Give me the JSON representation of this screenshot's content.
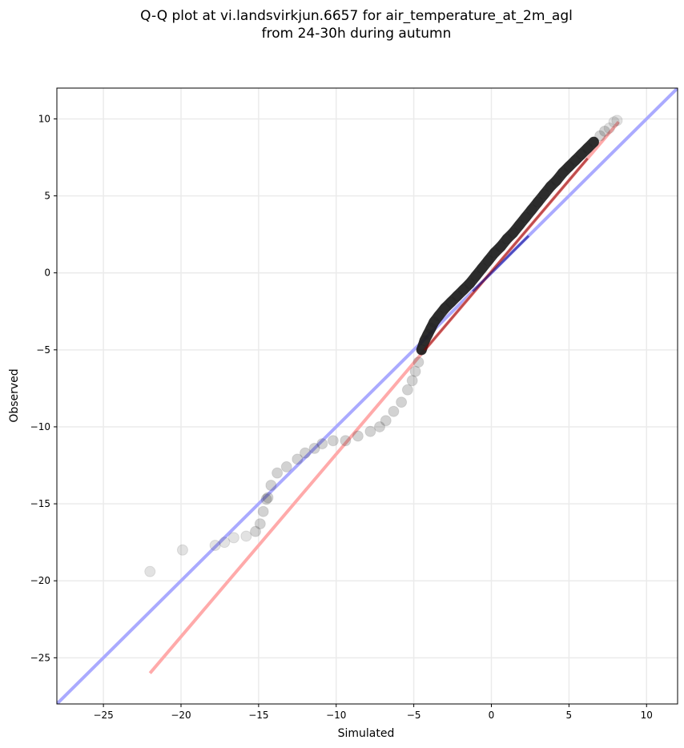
{
  "chart_data": {
    "type": "scatter",
    "title": "Q-Q plot at vi.landsvirkjun.6657 for air_temperature_at_2m_agl",
    "subtitle": "from 24-30h during autumn",
    "xlabel": "Simulated",
    "ylabel": "Observed",
    "xlim": [
      -28,
      12
    ],
    "ylim": [
      -28,
      12
    ],
    "x_ticks": [
      -25,
      -20,
      -15,
      -10,
      -5,
      0,
      5,
      10
    ],
    "y_ticks": [
      -25,
      -20,
      -15,
      -10,
      -5,
      0,
      5,
      10
    ],
    "x_tick_labels": [
      "−25",
      "−20",
      "−15",
      "−10",
      "−5",
      "0",
      "5",
      "10"
    ],
    "y_tick_labels": [
      "−25",
      "−20",
      "−15",
      "−10",
      "−5",
      "0",
      "5",
      "10"
    ],
    "grid": true,
    "colors": {
      "points": "#333333",
      "identity_line": "#aaaaff",
      "fit_line": "#ffaaaa",
      "inner_fit_red": "#8b0000",
      "inner_fit_blue": "#00008b"
    },
    "reference_lines": [
      {
        "kind": "identity",
        "x": [
          -28,
          12
        ],
        "y": [
          -28,
          12
        ]
      },
      {
        "kind": "fit",
        "x": [
          -22,
          8.2
        ],
        "y": [
          -26,
          9.8
        ]
      }
    ],
    "quantiles": {
      "x": [
        -22.0,
        -19.9,
        -17.8,
        -17.2,
        -16.6,
        -15.8,
        -15.2,
        -14.9,
        -14.7,
        -14.5,
        -14.4,
        -14.2,
        -13.8,
        -13.2,
        -12.5,
        -12.0,
        -11.4,
        -10.9,
        -10.2,
        -9.4,
        -8.6,
        -7.8,
        -7.2,
        -6.8,
        -6.3,
        -5.8,
        -5.4,
        -5.1,
        -4.9,
        -4.7,
        -4.5,
        -4.3,
        -4.1,
        -3.9,
        -3.7,
        -3.4,
        -3.0,
        -2.6,
        -2.2,
        -1.8,
        -1.4,
        -1.0,
        -0.6,
        -0.2,
        0.2,
        0.6,
        1.0,
        1.4,
        1.8,
        2.2,
        2.6,
        3.0,
        3.4,
        3.8,
        4.2,
        4.6,
        5.0,
        5.4,
        5.8,
        6.2,
        6.6,
        7.0,
        7.3,
        7.6,
        7.9,
        8.1
      ],
      "y": [
        -19.4,
        -18.0,
        -17.7,
        -17.5,
        -17.2,
        -17.1,
        -16.8,
        -16.3,
        -15.5,
        -14.7,
        -14.6,
        -13.8,
        -13.0,
        -12.6,
        -12.1,
        -11.7,
        -11.4,
        -11.1,
        -10.9,
        -10.9,
        -10.6,
        -10.3,
        -10.0,
        -9.6,
        -9.0,
        -8.4,
        -7.6,
        -7.0,
        -6.4,
        -5.8,
        -5.0,
        -4.4,
        -4.0,
        -3.6,
        -3.2,
        -2.8,
        -2.3,
        -1.9,
        -1.5,
        -1.1,
        -0.7,
        -0.2,
        0.3,
        0.8,
        1.3,
        1.7,
        2.2,
        2.6,
        3.1,
        3.6,
        4.1,
        4.6,
        5.1,
        5.6,
        6.0,
        6.5,
        6.9,
        7.3,
        7.7,
        8.1,
        8.5,
        8.9,
        9.2,
        9.4,
        9.8,
        9.9
      ]
    }
  }
}
